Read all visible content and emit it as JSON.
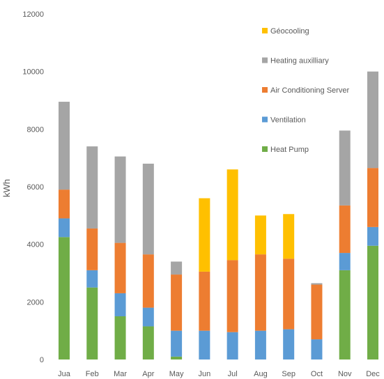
{
  "chart_data": {
    "type": "bar",
    "stacked": true,
    "categories": [
      "Jua",
      "Feb",
      "Mar",
      "Apr",
      "May",
      "Jun",
      "Jul",
      "Aug",
      "Sep",
      "Oct",
      "Nov",
      "Dec"
    ],
    "ylabel": "kWh",
    "xlabel": "",
    "title": "",
    "ylim": [
      0,
      12000
    ],
    "yticks": [
      "0",
      "2000",
      "4000",
      "6000",
      "8000",
      "10000",
      "12000"
    ],
    "grid": false,
    "legend_position": "top-right",
    "series": [
      {
        "name": "Heat Pump",
        "color": "#70ad47",
        "values": [
          4250,
          2500,
          1500,
          1150,
          100,
          0,
          0,
          0,
          0,
          0,
          3100,
          3950
        ]
      },
      {
        "name": "Ventilation",
        "color": "#5b9bd5",
        "values": [
          650,
          600,
          800,
          650,
          900,
          1000,
          950,
          1000,
          1050,
          700,
          600,
          650
        ]
      },
      {
        "name": "Air Conditioning Server",
        "color": "#ed7d31",
        "values": [
          1000,
          1450,
          1750,
          1850,
          1950,
          2050,
          2500,
          2650,
          2450,
          1900,
          1650,
          2050
        ]
      },
      {
        "name": "Heating auxilliary",
        "color": "#a5a5a5",
        "values": [
          3050,
          2850,
          3000,
          3150,
          450,
          0,
          0,
          0,
          0,
          50,
          2600,
          3350
        ]
      },
      {
        "name": "Géocooling",
        "color": "#ffc000",
        "values": [
          0,
          0,
          0,
          0,
          0,
          2550,
          3150,
          1350,
          1550,
          0,
          0,
          0
        ]
      }
    ]
  }
}
